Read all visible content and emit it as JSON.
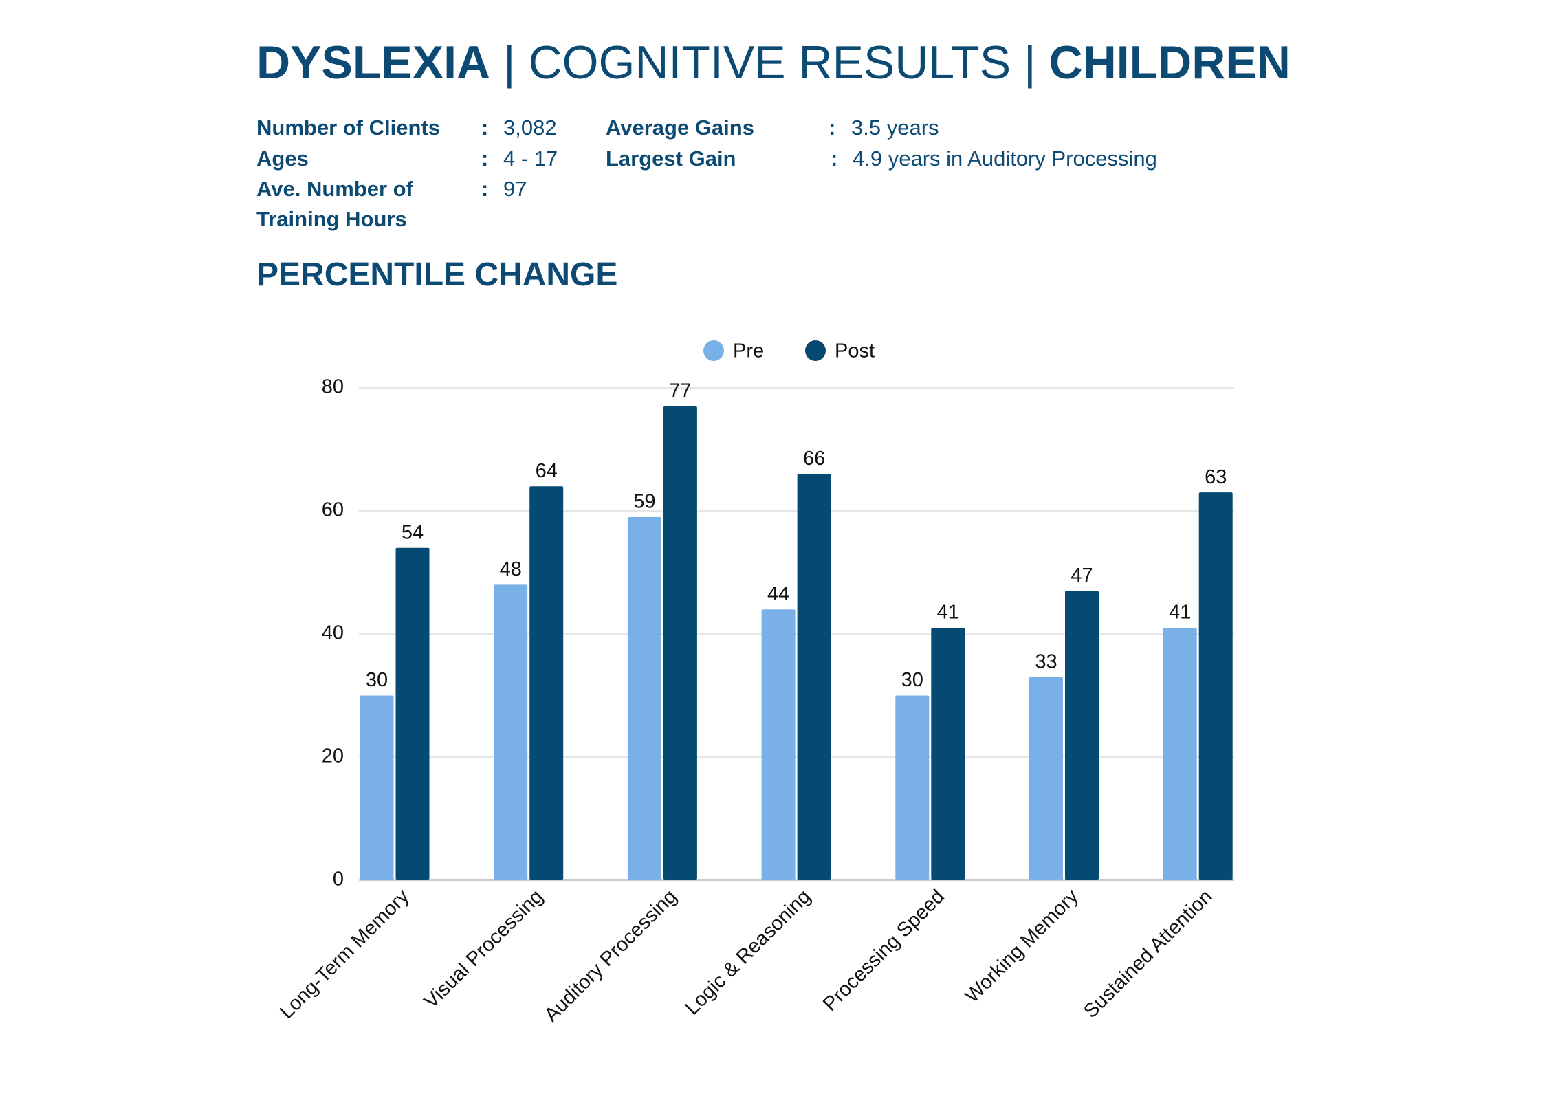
{
  "header": {
    "title_parts": [
      "DYSLEXIA",
      "| COGNITIVE RESULTS |",
      "CHILDREN"
    ],
    "separator": ":",
    "info": [
      {
        "label": "Number of Clients",
        "value": "3,082"
      },
      {
        "label": "Ages",
        "value": "4 - 17"
      },
      {
        "label": "Ave. Number of Training Hours",
        "value": "97"
      },
      {
        "label": "Average Gains",
        "value": "3.5 years"
      },
      {
        "label": "Largest Gain",
        "value": "4.9 years in Auditory Processing"
      }
    ],
    "subtitle": "PERCENTILE CHANGE"
  },
  "chart_data": {
    "type": "bar",
    "categories": [
      "Long-Term Memory",
      "Visual Processing",
      "Auditory Processing",
      "Logic & Reasoning",
      "Processing Speed",
      "Working Memory",
      "Sustained Attention"
    ],
    "series": [
      {
        "name": "Pre",
        "color": "#7ab0e8",
        "values": [
          30,
          48,
          59,
          44,
          30,
          33,
          41
        ]
      },
      {
        "name": "Post",
        "color": "#044a73",
        "values": [
          54,
          64,
          77,
          66,
          41,
          47,
          63
        ]
      }
    ],
    "ylim": [
      0,
      80
    ],
    "yticks": [
      0,
      20,
      40,
      60,
      80
    ],
    "grid": true,
    "legend": "top"
  }
}
